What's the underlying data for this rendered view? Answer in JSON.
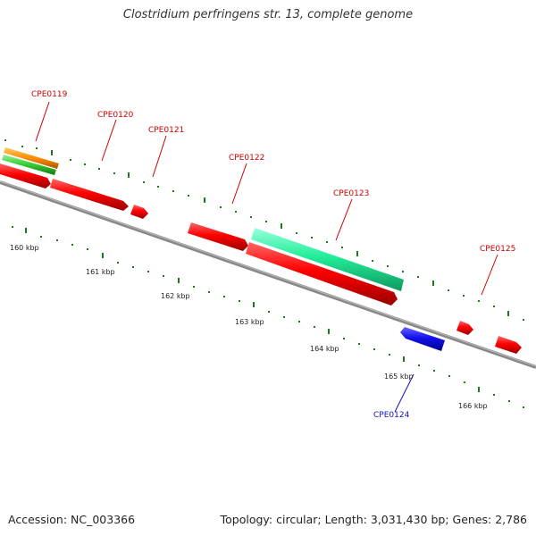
{
  "title": "Clostridium perfringens str. 13, complete genome",
  "accession": "Accession: NC_003366",
  "summary": "Topology: circular; Length: 3,031,430 bp; Genes: 2,786",
  "colors": {
    "red": "#ff0000",
    "orange": "#ff8c00",
    "green": "#33cc33",
    "teal": "#22ee99",
    "blue": "#1111ee",
    "backbone": "#999999",
    "tick": "#1a7a1a"
  },
  "scale_labels": [
    "160 kbp",
    "161 kbp",
    "162 kbp",
    "163 kbp",
    "164 kbp",
    "165 kbp",
    "166 kbp"
  ],
  "genes": [
    {
      "label": "CPE0119",
      "color": "#cc0000"
    },
    {
      "label": "CPE0120",
      "color": "#cc0000"
    },
    {
      "label": "CPE0121",
      "color": "#cc0000"
    },
    {
      "label": "CPE0122",
      "color": "#cc0000"
    },
    {
      "label": "CPE0123",
      "color": "#cc0000"
    },
    {
      "label": "CPE0125",
      "color": "#cc0000"
    },
    {
      "label": "CPE0124",
      "color": "#1111cc"
    }
  ]
}
